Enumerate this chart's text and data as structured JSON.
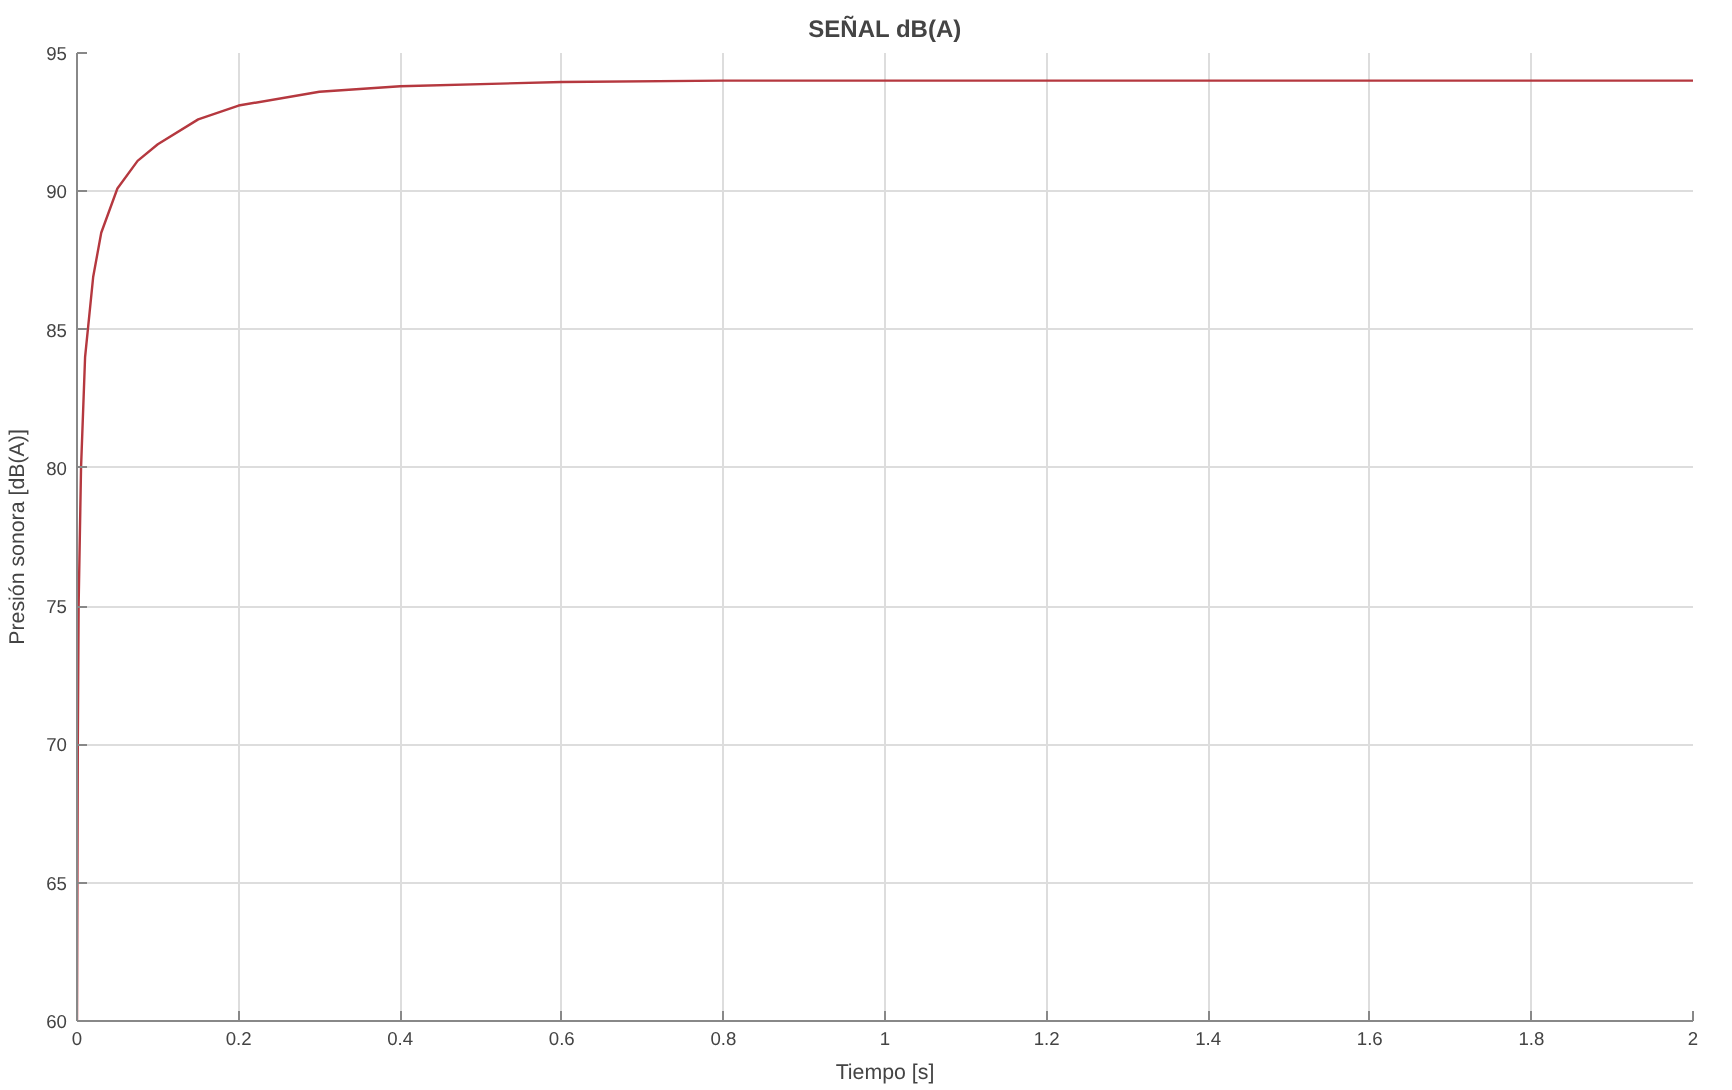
{
  "chart_data": {
    "type": "line",
    "title": "SEÑAL dB(A)",
    "xlabel": "Tiempo [s]",
    "ylabel": "Presión sonora [dB(A)]",
    "x": [
      0,
      0.001,
      0.002,
      0.005,
      0.01,
      0.02,
      0.03,
      0.05,
      0.075,
      0.1,
      0.15,
      0.2,
      0.3,
      0.4,
      0.6,
      0.8,
      1.0,
      1.5,
      2.0
    ],
    "series": [
      {
        "color": "#b5383f",
        "values": [
          60,
          70,
          75,
          80,
          84,
          86.9,
          88.5,
          90.1,
          91.1,
          91.7,
          92.6,
          93.1,
          93.6,
          93.8,
          93.95,
          94,
          94,
          94,
          94
        ]
      }
    ],
    "xlim": [
      0,
      2
    ],
    "ylim": [
      60,
      95
    ],
    "xticks": [
      0,
      0.2,
      0.4,
      0.6,
      0.8,
      1,
      1.2,
      1.4,
      1.6,
      1.8,
      2
    ],
    "yticks": [
      60,
      65,
      70,
      75,
      80,
      85,
      90,
      95
    ],
    "grid": true,
    "marker": "none",
    "line_style": "solid"
  }
}
